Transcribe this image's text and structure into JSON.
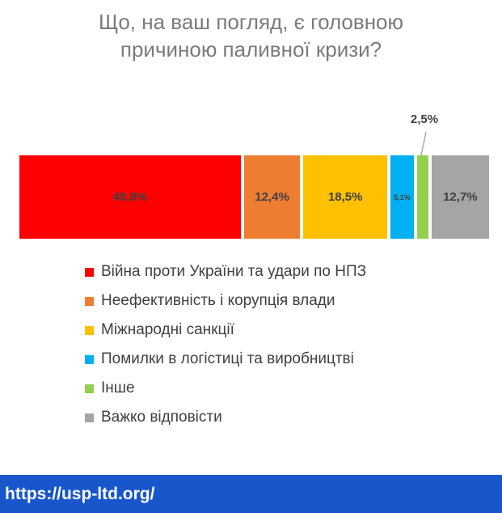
{
  "title": {
    "line1": "Що, на ваш погляд, є головною",
    "line2": "причиною паливної кризи?"
  },
  "chart_data": {
    "type": "bar",
    "subtype": "stacked-horizontal",
    "title": "Що, на ваш погляд, є головною причиною паливної кризи?",
    "unit": "%",
    "total": 100,
    "series": [
      {
        "name": "Війна проти України та удари по НПЗ",
        "value": 48.8,
        "label": "48,8%",
        "color": "#fe0000",
        "label_outside": false
      },
      {
        "name": "Неефективність і корупція влади",
        "value": 12.4,
        "label": "12,4%",
        "color": "#ed7d31",
        "label_outside": false
      },
      {
        "name": "Міжнародні санкції",
        "value": 18.5,
        "label": "18,5%",
        "color": "#ffc000",
        "label_outside": false
      },
      {
        "name": "Помилки в логістиці та виробництві",
        "value": 5.1,
        "label": "5,1%",
        "color": "#00b0f0",
        "label_outside": false
      },
      {
        "name": "Інше",
        "value": 2.5,
        "label": "2,5%",
        "color": "#92d050",
        "label_outside": true
      },
      {
        "name": "Важко відповісти",
        "value": 12.7,
        "label": "12,7%",
        "color": "#a5a5a5",
        "label_outside": false
      }
    ],
    "callout": {
      "text": "2,5%",
      "target_series": "Інше"
    },
    "legend_position": "bottom-left",
    "label_color": "#404040",
    "title_color": "#7a7a7a",
    "leader_line_color": "#a6a6a6"
  },
  "footer": {
    "url": "https://usp-ltd.org/",
    "background": "#1856cb"
  }
}
